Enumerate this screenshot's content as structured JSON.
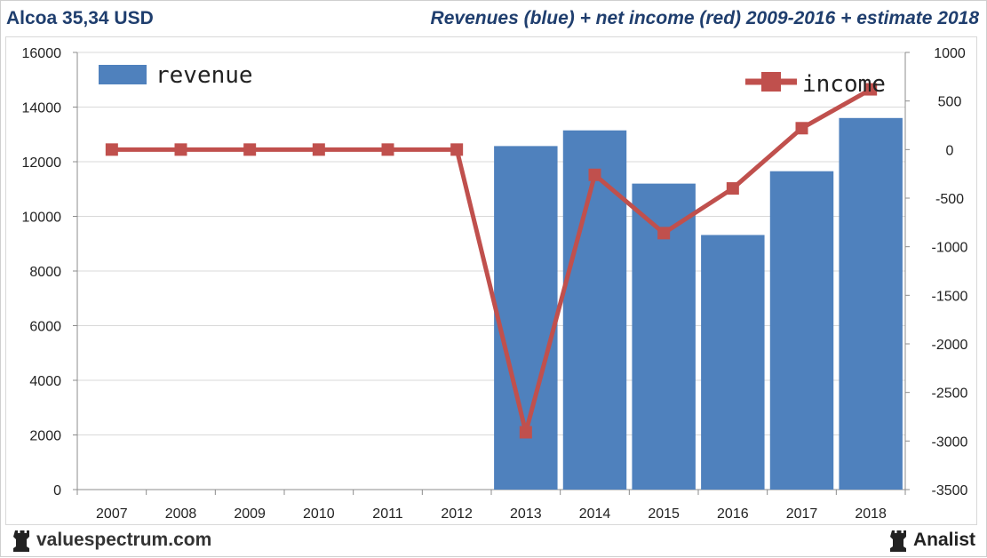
{
  "header": {
    "left_title": "Alcoa 35,34 USD",
    "right_title": "Revenues (blue) + net income (red) 2009-2016 + estimate 2018"
  },
  "footer": {
    "site": "valuespectrum.com",
    "brand": "Analist"
  },
  "colors": {
    "revenue": "#4f81bd",
    "income": "#c0504d",
    "title": "#1f3e6e",
    "grid": "#d9d9d9"
  },
  "chart_data": {
    "type": "bar+line",
    "categories": [
      "2007",
      "2008",
      "2009",
      "2010",
      "2011",
      "2012",
      "2013",
      "2014",
      "2015",
      "2016",
      "2017",
      "2018"
    ],
    "series": [
      {
        "name": "revenue",
        "type": "bar",
        "axis": "left",
        "values": [
          null,
          null,
          null,
          null,
          null,
          null,
          12573,
          13147,
          11199,
          9318,
          11652,
          13600
        ]
      },
      {
        "name": "income",
        "type": "line",
        "axis": "right",
        "values": [
          0,
          0,
          0,
          0,
          0,
          0,
          -2910,
          -260,
          -860,
          -400,
          220,
          620
        ]
      }
    ],
    "y_left": {
      "min": 0,
      "max": 16000,
      "ticks": [
        "0",
        "2000",
        "4000",
        "6000",
        "8000",
        "10000",
        "12000",
        "14000",
        "16000"
      ]
    },
    "y_right": {
      "min": -3500,
      "max": 1000,
      "ticks": [
        "-3500",
        "-3000",
        "-2500",
        "-2000",
        "-1500",
        "-1000",
        "-500",
        "0",
        "500",
        "1000"
      ]
    },
    "grid": true,
    "legend": [
      {
        "label": "revenue",
        "placement": "top-left"
      },
      {
        "label": "income",
        "placement": "top-right"
      }
    ]
  }
}
